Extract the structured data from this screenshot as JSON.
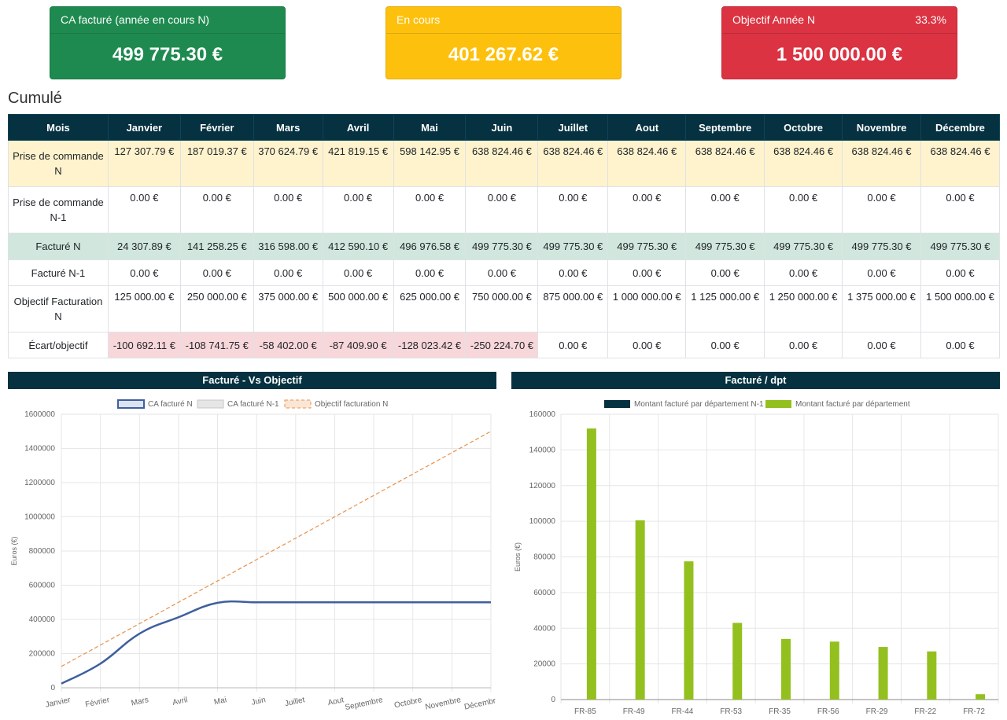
{
  "cards": {
    "ca": {
      "title": "CA facturé (année en cours N)",
      "value": "499 775.30 €",
      "color": "#1e8a4f"
    },
    "encours": {
      "title": "En cours",
      "value": "401 267.62 €",
      "color": "#fdc10d"
    },
    "objectif": {
      "title": "Objectif Année N",
      "pct": "33.3%",
      "value": "1 500 000.00 €",
      "color": "#db3342"
    }
  },
  "section_title": "Cumulé",
  "table": {
    "header": [
      "Mois",
      "Janvier",
      "Février",
      "Mars",
      "Avril",
      "Mai",
      "Juin",
      "Juillet",
      "Aout",
      "Septembre",
      "Octobre",
      "Novembre",
      "Décembre"
    ],
    "rows": [
      {
        "label": "Prise de commande N",
        "values": [
          "127 307.79 €",
          "187 019.37 €",
          "370 624.79 €",
          "421 819.15 €",
          "598 142.95 €",
          "638 824.46 €",
          "638 824.46 €",
          "638 824.46 €",
          "638 824.46 €",
          "638 824.46 €",
          "638 824.46 €",
          "638 824.46 €"
        ]
      },
      {
        "label": "Prise de commande N-1",
        "values": [
          "0.00 €",
          "0.00 €",
          "0.00 €",
          "0.00 €",
          "0.00 €",
          "0.00 €",
          "0.00 €",
          "0.00 €",
          "0.00 €",
          "0.00 €",
          "0.00 €",
          "0.00 €"
        ]
      },
      {
        "label": "Facturé N",
        "values": [
          "24 307.89 €",
          "141 258.25 €",
          "316 598.00 €",
          "412 590.10 €",
          "496 976.58 €",
          "499 775.30 €",
          "499 775.30 €",
          "499 775.30 €",
          "499 775.30 €",
          "499 775.30 €",
          "499 775.30 €",
          "499 775.30 €"
        ]
      },
      {
        "label": "Facturé N-1",
        "values": [
          "0.00 €",
          "0.00 €",
          "0.00 €",
          "0.00 €",
          "0.00 €",
          "0.00 €",
          "0.00 €",
          "0.00 €",
          "0.00 €",
          "0.00 €",
          "0.00 €",
          "0.00 €"
        ]
      },
      {
        "label": "Objectif Facturation N",
        "values": [
          "125 000.00 €",
          "250 000.00 €",
          "375 000.00 €",
          "500 000.00 €",
          "625 000.00 €",
          "750 000.00 €",
          "875 000.00 €",
          "1 000 000.00 €",
          "1 125 000.00 €",
          "1 250 000.00 €",
          "1 375 000.00 €",
          "1 500 000.00 €"
        ]
      },
      {
        "label": "Écart/objectif",
        "values": [
          "-100 692.11 €",
          "-108 741.75 €",
          "-58 402.00 €",
          "-87 409.90 €",
          "-128 023.42 €",
          "-250 224.70 €",
          "0.00 €",
          "0.00 €",
          "0.00 €",
          "0.00 €",
          "0.00 €",
          "0.00 €"
        ]
      }
    ]
  },
  "chart_data": [
    {
      "type": "line",
      "title": "Facturé - Vs Objectif",
      "ylabel": "Euros (€)",
      "ylim": [
        0,
        1600000
      ],
      "yticks": [
        0,
        200000,
        400000,
        600000,
        800000,
        1000000,
        1200000,
        1400000,
        1600000
      ],
      "categories": [
        "Janvier",
        "Février",
        "Mars",
        "Avril",
        "Mai",
        "Juin",
        "Juillet",
        "Aout",
        "Septembre",
        "Octobre",
        "Novembre",
        "Décembre"
      ],
      "legend_position": "top",
      "series": [
        {
          "name": "CA facturé N",
          "color": "#3e5f9e",
          "style": "solid",
          "values": [
            24307.89,
            141258.25,
            316598.0,
            412590.1,
            496976.58,
            499775.3,
            499775.3,
            499775.3,
            499775.3,
            499775.3,
            499775.3,
            499775.3
          ]
        },
        {
          "name": "CA facturé N-1",
          "color": "#c7c7c7",
          "style": "solid",
          "values": [
            0,
            0,
            0,
            0,
            0,
            0,
            0,
            0,
            0,
            0,
            0,
            0
          ]
        },
        {
          "name": "Objectif facturation N",
          "color": "#e8914a",
          "style": "dashed",
          "values": [
            125000,
            250000,
            375000,
            500000,
            625000,
            750000,
            875000,
            1000000,
            1125000,
            1250000,
            1375000,
            1500000
          ]
        }
      ]
    },
    {
      "type": "bar",
      "title": "Facturé / dpt",
      "ylabel": "Euros (€)",
      "ylim": [
        0,
        160000
      ],
      "yticks": [
        0,
        20000,
        40000,
        60000,
        80000,
        100000,
        120000,
        140000,
        160000
      ],
      "categories": [
        "FR-85",
        "FR-49",
        "FR-44",
        "FR-53",
        "FR-35",
        "FR-56",
        "FR-29",
        "FR-22",
        "FR-72"
      ],
      "legend_position": "top",
      "series": [
        {
          "name": "Montant facturé par département N-1",
          "color": "#063140",
          "values": [
            0,
            0,
            0,
            0,
            0,
            0,
            0,
            0,
            0
          ]
        },
        {
          "name": "Montant facturé par département",
          "color": "#93c01f",
          "values": [
            152000,
            100500,
            77500,
            43000,
            34000,
            32500,
            29500,
            27000,
            3000
          ]
        }
      ]
    }
  ]
}
